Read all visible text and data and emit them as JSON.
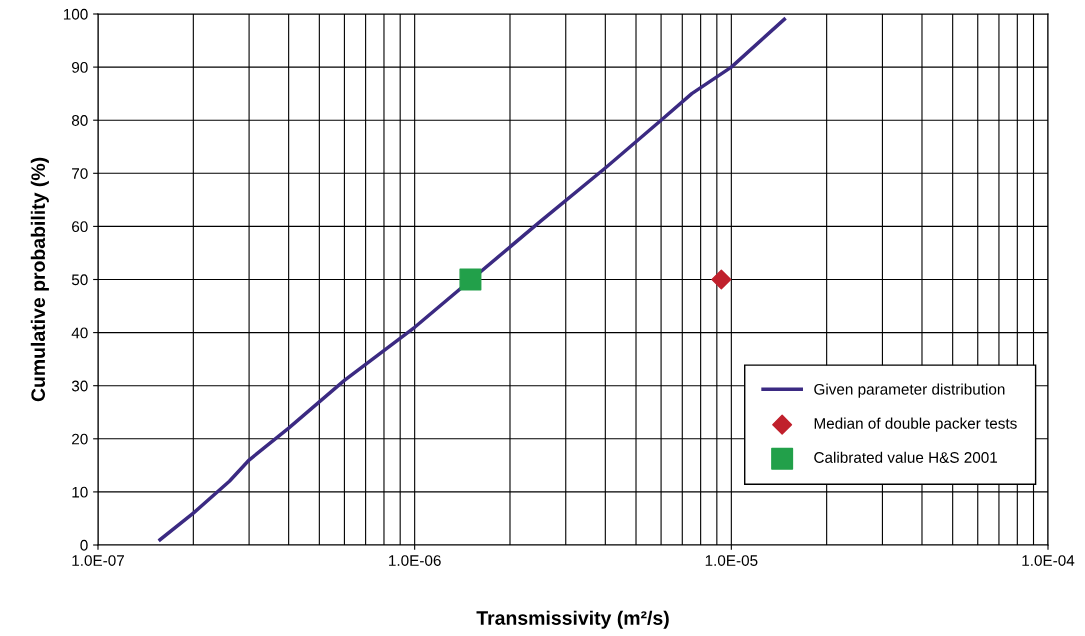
{
  "chart_data": {
    "type": "line",
    "xlabel": "Transmissivity (m²/s)",
    "ylabel": "Cumulative probability (%)",
    "series": [
      {
        "name": "Given parameter distribution",
        "color": "#3b2a82",
        "marker": "none",
        "x": [
          1.57e-07,
          2e-07,
          2.6e-07,
          3e-07,
          4e-07,
          6e-07,
          1e-06,
          2.5e-06,
          4e-06,
          6e-06,
          7.5e-06,
          1e-05,
          1.47e-05
        ],
        "values": [
          1,
          6,
          12,
          16,
          22,
          31,
          41,
          61,
          71,
          80,
          85,
          90,
          99
        ]
      },
      {
        "name": "Median of double packer tests",
        "type": "scatter",
        "color": "#c0202c",
        "marker": "diamond",
        "x": [
          9.3e-06
        ],
        "values": [
          50
        ]
      },
      {
        "name": "Calibrated value H&S 2001",
        "type": "scatter",
        "color": "#22a04a",
        "marker": "square",
        "x": [
          1.5e-06
        ],
        "values": [
          50
        ]
      }
    ],
    "log": "x",
    "xlim": [
      1e-07,
      0.0001
    ],
    "xticks": [
      {
        "value": 1e-07,
        "label": "1.0E-07"
      },
      {
        "value": 1e-06,
        "label": "1.0E-06"
      },
      {
        "value": 1e-05,
        "label": "1.0E-05"
      },
      {
        "value": 0.0001,
        "label": "1.0E-04"
      }
    ],
    "ylim": [
      0,
      100
    ],
    "yticks": [
      0,
      10,
      20,
      30,
      40,
      50,
      60,
      70,
      80,
      90,
      100
    ],
    "grid": true,
    "legend": "bottom right"
  }
}
